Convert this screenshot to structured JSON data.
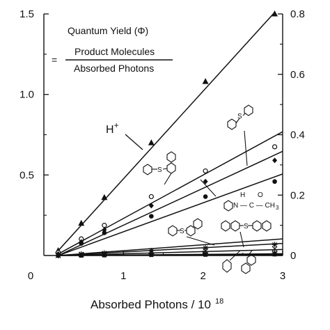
{
  "chart_data": {
    "type": "scatter",
    "xlabel": "Absorbed Photons / 10",
    "xlabel_exponent": "18",
    "xlim": [
      0,
      3
    ],
    "ylim_left": [
      0,
      1.5
    ],
    "ylim_right": [
      0,
      0.8
    ],
    "x_ticks": [
      "0",
      "1",
      "2",
      "3"
    ],
    "y_ticks_left": [
      "0.5",
      "1.0",
      "1.5"
    ],
    "y_ticks_right": [
      "0",
      "0.2",
      "0.4",
      "0.6",
      "0.8"
    ],
    "formula": {
      "title": "Quantum Yield (Φ)",
      "equals": "=",
      "numerator": "Product Molecules",
      "denominator": "Absorbed Photons"
    },
    "series": [
      {
        "name": "H+",
        "marker": "triangle",
        "axis": "left",
        "points": [
          [
            0.18,
            0.03
          ],
          [
            0.47,
            0.2
          ],
          [
            0.76,
            0.36
          ],
          [
            1.35,
            0.7
          ],
          [
            2.03,
            1.08
          ],
          [
            2.9,
            1.5
          ]
        ],
        "line": [
          [
            0.18,
            0.03
          ],
          [
            2.9,
            1.51
          ]
        ]
      },
      {
        "name": "",
        "marker": "open-circle",
        "axis": "right",
        "points": [
          [
            0.18,
            0.01
          ],
          [
            0.47,
            0.055
          ],
          [
            0.76,
            0.1
          ],
          [
            1.35,
            0.195
          ],
          [
            2.03,
            0.28
          ],
          [
            2.9,
            0.36
          ]
        ],
        "line": [
          [
            0.18,
            0.005
          ],
          [
            3.0,
            0.41
          ]
        ]
      },
      {
        "name": "",
        "marker": "diamond",
        "axis": "right",
        "points": [
          [
            0.18,
            0.005
          ],
          [
            0.47,
            0.045
          ],
          [
            0.76,
            0.085
          ],
          [
            1.35,
            0.165
          ],
          [
            2.03,
            0.245
          ],
          [
            2.9,
            0.315
          ]
        ],
        "line": [
          [
            0.18,
            0.0
          ],
          [
            3.0,
            0.345
          ]
        ]
      },
      {
        "name": "",
        "marker": "filled-circle",
        "axis": "right",
        "points": [
          [
            0.18,
            0.0
          ],
          [
            0.47,
            0.04
          ],
          [
            0.76,
            0.075
          ],
          [
            1.35,
            0.13
          ],
          [
            2.03,
            0.195
          ],
          [
            2.9,
            0.245
          ]
        ],
        "line": [
          [
            0.18,
            0.0
          ],
          [
            3.0,
            0.27
          ]
        ]
      },
      {
        "name": "",
        "marker": "star",
        "axis": "right",
        "points": [
          [
            0.18,
            0.0
          ],
          [
            0.47,
            0.005
          ],
          [
            0.76,
            0.008
          ],
          [
            1.35,
            0.016
          ],
          [
            2.03,
            0.025
          ],
          [
            2.9,
            0.036
          ]
        ],
        "line": [
          [
            0.18,
            0.0
          ],
          [
            3.0,
            0.055
          ]
        ]
      },
      {
        "name": "",
        "marker": "cross",
        "axis": "right",
        "points": [
          [
            0.18,
            0.0
          ],
          [
            0.47,
            0.003
          ],
          [
            0.76,
            0.005
          ],
          [
            1.35,
            0.01
          ],
          [
            2.03,
            0.015
          ],
          [
            2.9,
            0.022
          ]
        ],
        "line": [
          [
            0.18,
            0.0
          ],
          [
            3.0,
            0.04
          ]
        ]
      },
      {
        "name": "",
        "marker": "plus",
        "axis": "right",
        "points": [
          [
            0.18,
            0.0
          ],
          [
            0.47,
            0.002
          ],
          [
            0.76,
            0.003
          ],
          [
            1.35,
            0.006
          ],
          [
            2.03,
            0.009
          ],
          [
            2.9,
            0.012
          ]
        ],
        "line": [
          [
            0.18,
            0.0
          ],
          [
            3.0,
            0.02
          ]
        ]
      },
      {
        "name": "",
        "marker": "square",
        "axis": "right",
        "points": [
          [
            0.18,
            0.0
          ],
          [
            0.47,
            0.0
          ],
          [
            0.76,
            0.001
          ],
          [
            1.35,
            0.002
          ],
          [
            2.03,
            0.003
          ],
          [
            2.9,
            0.004
          ]
        ],
        "line": [
          [
            0.18,
            0.0
          ],
          [
            3.0,
            0.006
          ]
        ]
      },
      {
        "name": "",
        "marker": "filled-triangle-small",
        "axis": "right",
        "points": [
          [
            0.18,
            0.0
          ],
          [
            0.47,
            0.0
          ],
          [
            0.76,
            0.0
          ],
          [
            1.35,
            0.001
          ],
          [
            2.03,
            0.001
          ],
          [
            2.9,
            0.002
          ]
        ],
        "line": [
          [
            0.18,
            0.0
          ],
          [
            3.0,
            0.003
          ]
        ]
      }
    ],
    "structure_labels": {
      "amide_h": "H",
      "amide_o": "O",
      "amide_chain": "N — C — CH",
      "amide_sub": "3",
      "sulfur": "S"
    }
  }
}
